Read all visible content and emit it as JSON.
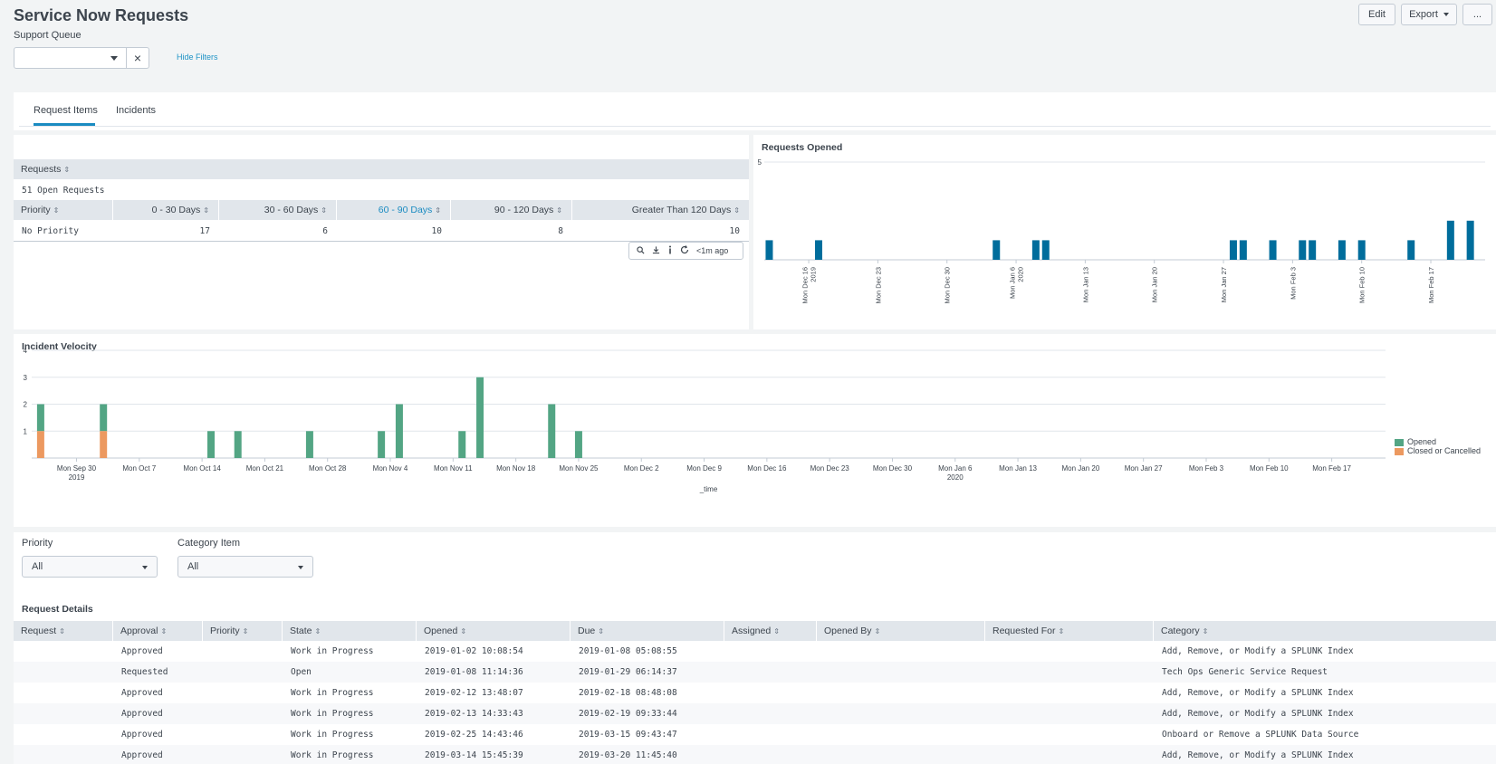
{
  "header": {
    "title": "Service Now Requests",
    "support_queue_label": "Support Queue",
    "support_queue_value": "",
    "hide_filters": "Hide Filters",
    "clear_icon": "×",
    "edit_label": "Edit",
    "export_label": "Export",
    "more_label": "..."
  },
  "tabs": [
    {
      "label": "Request Items",
      "active": true
    },
    {
      "label": "Incidents",
      "active": false
    }
  ],
  "requests_table": {
    "title_col": "Requests",
    "summary": "51 Open Requests",
    "columns": [
      "Priority",
      "0 - 30 Days",
      "30 - 60 Days",
      "60 - 90 Days",
      "90 - 120 Days",
      "Greater Than 120 Days"
    ],
    "rows": [
      {
        "priority": "No Priority",
        "d0_30": "17",
        "d30_60": "6",
        "d60_90": "10",
        "d90_120": "8",
        "d120": "10"
      }
    ],
    "toolbar": {
      "last_updated": "<1m ago",
      "icons": [
        "search-icon",
        "download-icon",
        "info-icon",
        "refresh-icon"
      ]
    }
  },
  "requests_opened": {
    "title": "Requests Opened",
    "chart_data": {
      "type": "bar",
      "title": "Requests Opened",
      "ylim": [
        0,
        5
      ],
      "y_ticks": [
        5
      ],
      "color": "#006d9c",
      "x_ticks": [
        "Mon Dec 16\n2019",
        "Mon Dec 23",
        "Mon Dec 30",
        "Mon Jan 6\n2020",
        "Mon Jan 13",
        "Mon Jan 20",
        "Mon Jan 27",
        "Mon Feb 3",
        "Mon Feb 10",
        "Mon Feb 17"
      ],
      "x_start": "2019-12-12",
      "x_end": "2020-02-22",
      "points": [
        {
          "x": "2019-12-12",
          "y": 1
        },
        {
          "x": "2019-12-17",
          "y": 1
        },
        {
          "x": "2020-01-04",
          "y": 1
        },
        {
          "x": "2020-01-08",
          "y": 1
        },
        {
          "x": "2020-01-09",
          "y": 1
        },
        {
          "x": "2020-01-28",
          "y": 1
        },
        {
          "x": "2020-01-29",
          "y": 1
        },
        {
          "x": "2020-02-01",
          "y": 1
        },
        {
          "x": "2020-02-04",
          "y": 1
        },
        {
          "x": "2020-02-05",
          "y": 1
        },
        {
          "x": "2020-02-08",
          "y": 1
        },
        {
          "x": "2020-02-10",
          "y": 1
        },
        {
          "x": "2020-02-15",
          "y": 1
        },
        {
          "x": "2020-02-19",
          "y": 2
        },
        {
          "x": "2020-02-21",
          "y": 2
        }
      ]
    }
  },
  "incident_velocity": {
    "title": "Incident Velocity",
    "chart_data": {
      "type": "bar",
      "title": "Incident Velocity",
      "xlabel": "_time",
      "ylim": [
        0,
        4
      ],
      "y_ticks": [
        1,
        2,
        3,
        4
      ],
      "x_ticks": [
        "Mon Sep 30\n2019",
        "Mon Oct 7",
        "Mon Oct 14",
        "Mon Oct 21",
        "Mon Oct 28",
        "Mon Nov 4",
        "Mon Nov 11",
        "Mon Nov 18",
        "Mon Nov 25",
        "Mon Dec 2",
        "Mon Dec 9",
        "Mon Dec 16",
        "Mon Dec 23",
        "Mon Dec 30",
        "Mon Jan 6\n2020",
        "Mon Jan 13",
        "Mon Jan 20",
        "Mon Jan 27",
        "Mon Feb 3",
        "Mon Feb 10",
        "Mon Feb 17"
      ],
      "legend_placement": "right",
      "series": [
        {
          "name": "Opened",
          "color": "#53a584",
          "points": [
            {
              "x": "2019-09-26",
              "y": 2
            },
            {
              "x": "2019-10-03",
              "y": 2
            },
            {
              "x": "2019-10-15",
              "y": 1
            },
            {
              "x": "2019-10-18",
              "y": 1
            },
            {
              "x": "2019-10-26",
              "y": 1
            },
            {
              "x": "2019-11-03",
              "y": 1
            },
            {
              "x": "2019-11-05",
              "y": 2
            },
            {
              "x": "2019-11-12",
              "y": 1
            },
            {
              "x": "2019-11-14",
              "y": 3
            },
            {
              "x": "2019-11-22",
              "y": 2
            },
            {
              "x": "2019-11-25",
              "y": 1
            }
          ]
        },
        {
          "name": "Closed or Cancelled",
          "color": "#ec9960",
          "points": [
            {
              "x": "2019-09-26",
              "y": 1
            },
            {
              "x": "2019-10-03",
              "y": 1
            }
          ]
        }
      ]
    }
  },
  "filters": {
    "priority_label": "Priority",
    "priority_value": "All",
    "category_label": "Category Item",
    "category_value": "All"
  },
  "details": {
    "title": "Request Details",
    "columns": [
      "Request",
      "Approval",
      "Priority",
      "State",
      "Opened",
      "Due",
      "Assigned",
      "Opened By",
      "Requested For",
      "Category"
    ],
    "rows": [
      {
        "request": "",
        "approval": "Approved",
        "priority": "",
        "state": "Work in Progress",
        "opened": "2019-01-02 10:08:54",
        "due": "2019-01-08 05:08:55",
        "assigned": "",
        "opened_by": "",
        "requested_for": "",
        "category": "Add, Remove, or Modify a SPLUNK Index"
      },
      {
        "request": "",
        "approval": "Requested",
        "priority": "",
        "state": "Open",
        "opened": "2019-01-08 11:14:36",
        "due": "2019-01-29 06:14:37",
        "assigned": "",
        "opened_by": "",
        "requested_for": "",
        "category": "Tech Ops Generic Service Request"
      },
      {
        "request": "",
        "approval": "Approved",
        "priority": "",
        "state": "Work in Progress",
        "opened": "2019-02-12 13:48:07",
        "due": "2019-02-18 08:48:08",
        "assigned": "",
        "opened_by": "",
        "requested_for": "",
        "category": "Add, Remove, or Modify a SPLUNK Index"
      },
      {
        "request": "",
        "approval": "Approved",
        "priority": "",
        "state": "Work in Progress",
        "opened": "2019-02-13 14:33:43",
        "due": "2019-02-19 09:33:44",
        "assigned": "",
        "opened_by": "",
        "requested_for": "",
        "category": "Add, Remove, or Modify a SPLUNK Index"
      },
      {
        "request": "",
        "approval": "Approved",
        "priority": "",
        "state": "Work in Progress",
        "opened": "2019-02-25 14:43:46",
        "due": "2019-03-15 09:43:47",
        "assigned": "",
        "opened_by": "",
        "requested_for": "",
        "category": "Onboard or Remove a SPLUNK Data Source"
      },
      {
        "request": "",
        "approval": "Approved",
        "priority": "",
        "state": "Work in Progress",
        "opened": "2019-03-14 15:45:39",
        "due": "2019-03-20 11:45:40",
        "assigned": "",
        "opened_by": "",
        "requested_for": "",
        "category": "Add, Remove, or Modify a SPLUNK Index"
      }
    ]
  }
}
